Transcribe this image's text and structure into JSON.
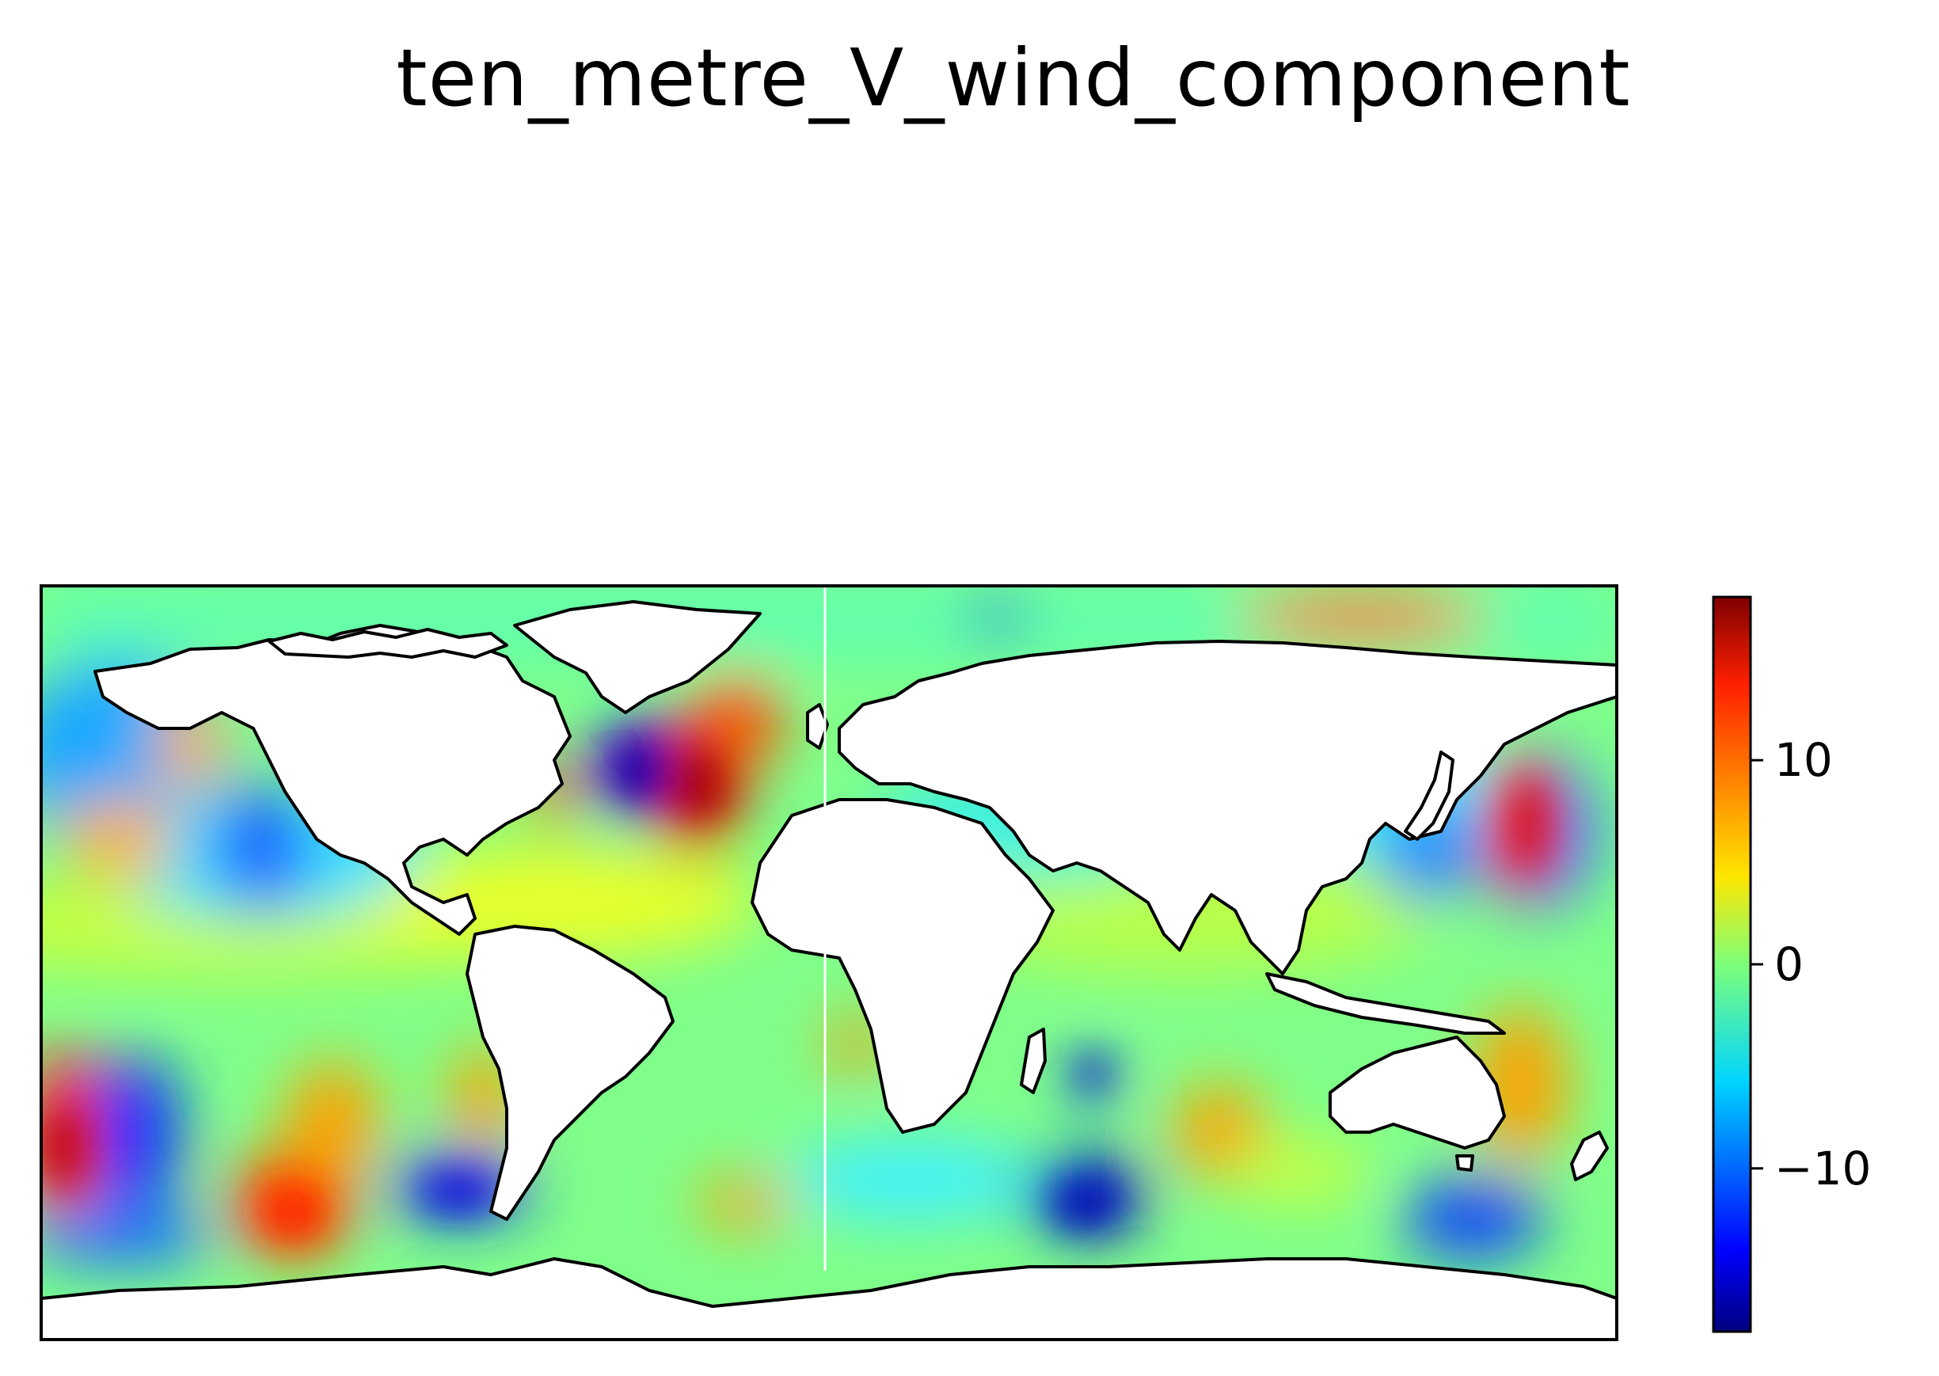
{
  "title": "ten_metre_V_wind_component",
  "colorbar": {
    "colormap": "jet",
    "range": [
      -18,
      18
    ],
    "ticks": [
      {
        "value": 10,
        "label": "10"
      },
      {
        "value": 0,
        "label": "0"
      },
      {
        "value": -10,
        "label": "−10"
      }
    ]
  },
  "map": {
    "projection": "PlateCarree",
    "lon_range": [
      -180,
      180
    ],
    "lat_range": [
      -90,
      90
    ],
    "land_color": "#ffffff",
    "coastline_color": "#000000"
  },
  "colors": {
    "background": "#ffffff",
    "frame": "#000000"
  }
}
